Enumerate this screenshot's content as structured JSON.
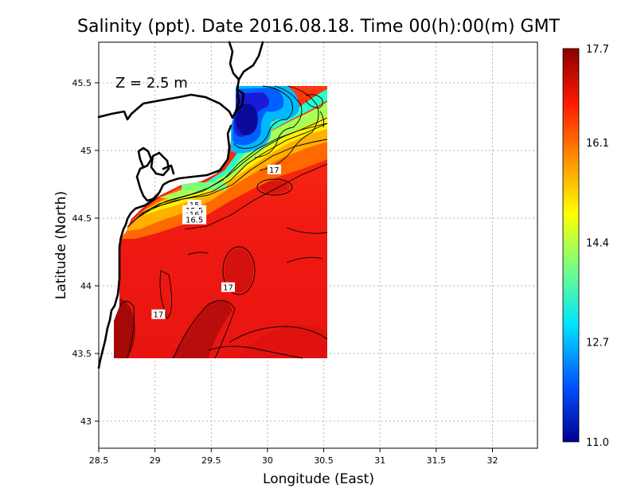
{
  "title": "Salinity (ppt). Date 2016.08.18. Time 00(h):00(m) GMT",
  "depth_label": "Z = 2.5 m",
  "x_axis": {
    "label": "Longitude (East)",
    "range": [
      28.5,
      32.4
    ],
    "ticks": [
      "28.5",
      "29",
      "29.5",
      "30",
      "30.5",
      "31",
      "31.5",
      "32"
    ]
  },
  "y_axis": {
    "label": "Latitude (North)",
    "range": [
      42.8,
      45.8
    ],
    "ticks": [
      "43",
      "43.5",
      "44",
      "44.5",
      "45",
      "45.5"
    ]
  },
  "colorbar": {
    "min": 11.0,
    "max": 17.7,
    "tick_labels": [
      "11.0",
      "12.7",
      "14.4",
      "16.1",
      "17.7"
    ],
    "colors": [
      "#00008f",
      "#0050ff",
      "#00e5ff",
      "#7dff7a",
      "#ffff00",
      "#ff9000",
      "#ff1a00",
      "#8b0000"
    ]
  },
  "contour_labels": [
    {
      "text": "15",
      "lon": 29.35,
      "lat": 44.6
    },
    {
      "text": "15.5",
      "lon": 29.35,
      "lat": 44.56
    },
    {
      "text": "16",
      "lon": 29.35,
      "lat": 44.53
    },
    {
      "text": "16.5",
      "lon": 29.35,
      "lat": 44.49
    },
    {
      "text": "17",
      "lon": 30.06,
      "lat": 44.86
    },
    {
      "text": "17",
      "lon": 29.65,
      "lat": 43.99
    },
    {
      "text": "17",
      "lon": 29.03,
      "lat": 43.79
    }
  ]
}
